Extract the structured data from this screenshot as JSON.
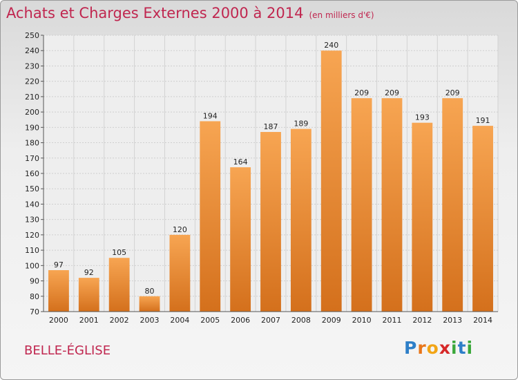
{
  "title": "Achats et Charges Externes 2000 à 2014",
  "subtitle": "(en milliers d'€)",
  "commune": "BELLE-ÉGLISE",
  "logo": {
    "letters": [
      "P",
      "r",
      "o",
      "x",
      "i",
      "t",
      "i"
    ],
    "colors": [
      "#2e7fc8",
      "#e8761a",
      "#f2a516",
      "#d62828",
      "#3aa83a",
      "#2e7fc8",
      "#3aa83a"
    ]
  },
  "colors": {
    "bar_top": "#f7a552",
    "bar_bottom": "#d4701c",
    "title": "#c0264f"
  },
  "chart_data": {
    "type": "bar",
    "categories": [
      "2000",
      "2001",
      "2002",
      "2003",
      "2004",
      "2005",
      "2006",
      "2007",
      "2008",
      "2009",
      "2010",
      "2011",
      "2012",
      "2013",
      "2014"
    ],
    "values": [
      97,
      92,
      105,
      80,
      120,
      194,
      164,
      187,
      189,
      240,
      209,
      209,
      193,
      209,
      191
    ],
    "ylim": [
      70,
      250
    ],
    "yticks": [
      70,
      80,
      90,
      100,
      110,
      120,
      130,
      140,
      150,
      160,
      170,
      180,
      190,
      200,
      210,
      220,
      230,
      240,
      250
    ],
    "grid": true,
    "legend": "none"
  }
}
